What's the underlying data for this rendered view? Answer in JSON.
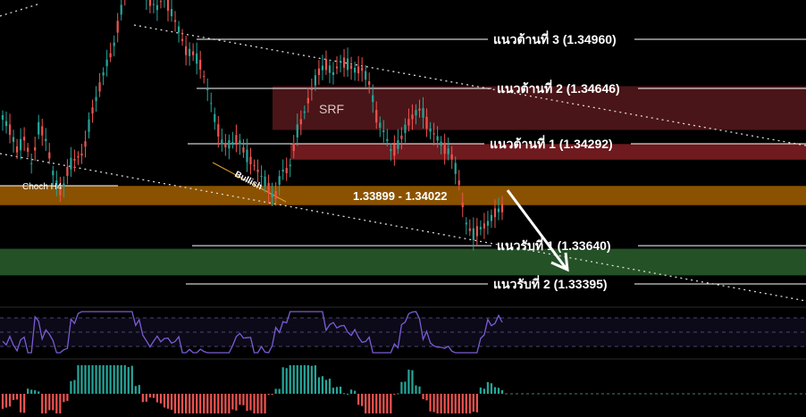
{
  "chart_data": {
    "type": "candlestick",
    "title": "",
    "annotations": {
      "choch": "Choch H4",
      "bullish": "Bullish",
      "srf_zone": "SRF",
      "range": "1.33899 - 1.34022"
    },
    "levels": [
      {
        "label": "แนวต้านที่ 3 (1.34960)",
        "value": 1.3496,
        "kind": "resistance"
      },
      {
        "label": "แนวต้านที่ 2 (1.34646)",
        "value": 1.34646,
        "kind": "resistance"
      },
      {
        "label": "แนวต้านที่ 1 (1.34292)",
        "value": 1.34292,
        "kind": "resistance"
      },
      {
        "label": "แนวรับที่ 1 (1.33640)",
        "value": 1.3364,
        "kind": "support"
      },
      {
        "label": "แนวรับที่ 2 (1.33395)",
        "value": 1.33395,
        "kind": "support"
      }
    ],
    "zones": [
      {
        "name": "SRF",
        "from": 1.3438,
        "to": 1.3466,
        "color": "#4a1518"
      },
      {
        "name": "resistance-1-zone",
        "from": 1.3419,
        "to": 1.3429,
        "color": "#6e1a1e"
      },
      {
        "name": "range",
        "from": 1.33899,
        "to": 1.34022,
        "color": "#8a5200"
      },
      {
        "name": "support-zone",
        "from": 1.3345,
        "to": 1.3362,
        "color": "#255127"
      }
    ],
    "price_path": [
      1.3446,
      1.3438,
      1.3425,
      1.3433,
      1.3415,
      1.3442,
      1.343,
      1.3407,
      1.3397,
      1.3415,
      1.342,
      1.3423,
      1.3447,
      1.3462,
      1.3479,
      1.3489,
      1.3512,
      1.3532,
      1.3534,
      1.3528,
      1.3521,
      1.3516,
      1.3524,
      1.3513,
      1.3502,
      1.3488,
      1.3487,
      1.3479,
      1.3462,
      1.3443,
      1.3428,
      1.3429,
      1.3433,
      1.3423,
      1.3417,
      1.341,
      1.3403,
      1.3393,
      1.3412,
      1.3412,
      1.3436,
      1.3448,
      1.3463,
      1.3475,
      1.348,
      1.3474,
      1.3482,
      1.348,
      1.3476,
      1.3477,
      1.3467,
      1.3444,
      1.3436,
      1.3423,
      1.343,
      1.3441,
      1.3448,
      1.3452,
      1.3439,
      1.3434,
      1.3427,
      1.3423,
      1.3408,
      1.3379,
      1.3371,
      1.3375,
      1.3378,
      1.3385,
      1.3388
    ],
    "colors": {
      "up": "#26a69a",
      "down": "#ef5350",
      "rsi": "#7b5cd6",
      "trend": "#d9d9d9",
      "arrow": "#ffffff"
    }
  }
}
